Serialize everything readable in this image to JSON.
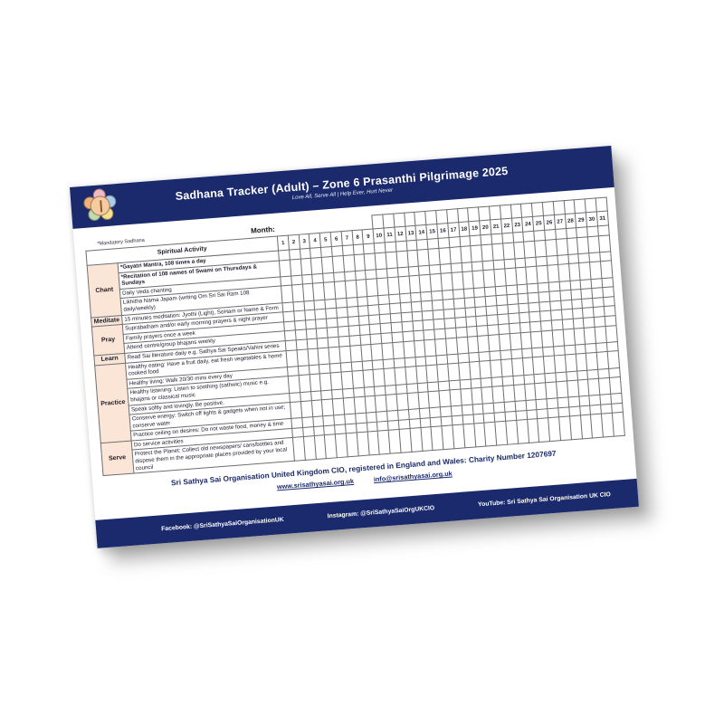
{
  "header": {
    "title": "Sadhana Tracker (Adult) – Zone 6 Prasanthi Pilgrimage 2025",
    "subtitle": "Love All, Serve All | Help Ever, Hurt Never",
    "logo": "sarva-dharma-emblem"
  },
  "table": {
    "mandatory_note": "*Mandatory Sadhana",
    "month_label": "Month:",
    "activity_header": "Spiritual Activity",
    "days": [
      1,
      2,
      3,
      4,
      5,
      6,
      7,
      8,
      9,
      10,
      11,
      12,
      13,
      14,
      15,
      16,
      17,
      18,
      19,
      20,
      21,
      22,
      23,
      24,
      25,
      26,
      27,
      28,
      29,
      30,
      31
    ],
    "groups": [
      {
        "category": "Chant",
        "activities": [
          "*Gayatri Mantra, 108 times a day",
          "*Recitation of 108 names of Swami on Thursdays & Sundays",
          "Daily Veda chanting",
          "Likhitha Nama Japam (writing Om Sri Sai Ram 108 daily/weekly)"
        ]
      },
      {
        "category": "Meditate",
        "activities": [
          "15 minutes meditation: Jyothi (Light), SoHam or Name & Form"
        ]
      },
      {
        "category": "Pray",
        "activities": [
          "Suprabatham and/or early morning prayers & night prayer",
          "Family prayers once a week",
          "Attend centre/group bhajans weekly"
        ]
      },
      {
        "category": "Learn",
        "activities": [
          "Read Sai literature daily e.g. Sathya Sai Speaks/Vahini series"
        ]
      },
      {
        "category": "Practice",
        "activities": [
          "Healthy eating: Have a fruit daily, eat fresh vegetables & home cooked food",
          "Healthy living: Walk 20/30 mins every day",
          "Healthy listening: Listen to soothing (sathwic) music e.g. bhajans or classical music",
          "Speak softly and lovingly. Be positive.",
          "Conserve energy: Switch off lights & gadgets when not in use; conserve water",
          "Practice ceiling on desires: Do not waste food, money & time"
        ]
      },
      {
        "category": "Serve",
        "activities": [
          "Do service activities",
          "Protect the Planet: Collect old newspapers/ cans/bottles and dispose them in the appropriate places provided by your local council"
        ]
      }
    ]
  },
  "footer": {
    "charity_line": "Sri Sathya Sai Organisation United Kingdom CIO, registered in England and Wales: Charity Number  1207697",
    "website": "www.srisathyasai.org.uk",
    "email": "info@srisathyasai.org.uk",
    "facebook": "Facebook: @SriSathyaSaiOrganisationUK",
    "instagram": "Instagram: @SriSathyaSaiOrgUKCIO",
    "youtube": "YouTube: Sri Sathya Sai Organisation UK CIO"
  },
  "colors": {
    "navy": "#1b2a6d",
    "category_fill": "#fbe5d6",
    "paper": "#ffffff"
  }
}
